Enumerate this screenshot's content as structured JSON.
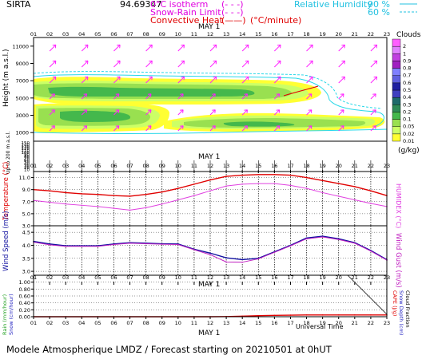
{
  "header": {
    "station": "SIRTA",
    "lon_lat": "94.69347",
    "legend_isotherm": "0°C isotherm",
    "legend_isotherm_style": "(- - -)",
    "legend_snow_rain": "Snow-Rain Limit",
    "legend_snow_rain_style": "(- - -)",
    "legend_convective": "Convective Heat",
    "legend_convective_style": "(——)",
    "legend_convective_unit": "(°C/minute)",
    "legend_rh": "Relative Humidity",
    "rh_90": "90 %",
    "rh_60": "60 %"
  },
  "footer": {
    "text": "Modele Atmospherique LMDZ / Forecast starting on 20210501 at 0hUT"
  },
  "colors": {
    "temperature": "#e00000",
    "humidex": "#e040e0",
    "wind_speed": "#1010a0",
    "wind_gust": "#c020c0",
    "cape": "#e00000",
    "rh_line": "#28d8e8",
    "wind_barb": "#ff20ff",
    "text_magenta": "#e000e0",
    "text_red": "#e00000",
    "text_cyan": "#20c0e0",
    "text_blue": "#2020c0"
  },
  "chart_data": [
    {
      "type": "heatmap",
      "title": "Clouds",
      "ylabel": "Height (m a.s.l.)",
      "ylabel_lower": "Up to 200 m a.s.l.",
      "xlabel": "MAY 1",
      "x_ticks": [
        "01",
        "02",
        "03",
        "04",
        "05",
        "06",
        "07",
        "08",
        "09",
        "10",
        "11",
        "12",
        "13",
        "14",
        "15",
        "16",
        "17",
        "18",
        "19",
        "20",
        "21",
        "22",
        "23"
      ],
      "y_ticks_upper": [
        1000,
        3000,
        5000,
        7000,
        9000,
        11000
      ],
      "y_ticks_lower": [
        10,
        20,
        30,
        40,
        50,
        60,
        70,
        80,
        90,
        100,
        110,
        120,
        130,
        140,
        150
      ],
      "colorbar_title": "Clouds",
      "colorbar_unit": "(g/kg)",
      "colorbar_levels": [
        "0.01",
        "0.02",
        "0.05",
        "0.1",
        "0.2",
        "0.3",
        "0.4",
        "0.5",
        "0.6",
        "0.7",
        "0.8",
        "0.9",
        "1",
        "2"
      ],
      "colorbar_colors": [
        "#ffff33",
        "#ccff66",
        "#99e050",
        "#44b84c",
        "#2e8b57",
        "#1e6b6b",
        "#4040c0",
        "#2020a0",
        "#6060e0",
        "#8080ff",
        "#a020c0",
        "#c040e0",
        "#e080ff",
        "#ff60ff"
      ]
    },
    {
      "type": "line",
      "x_ticks": [
        "01",
        "02",
        "03",
        "04",
        "05",
        "06",
        "07",
        "08",
        "09",
        "10",
        "11",
        "12",
        "13",
        "14",
        "15",
        "16",
        "17",
        "18",
        "19",
        "20",
        "21",
        "22",
        "23"
      ],
      "ylabel": "Temperature (°C)",
      "ylabel_right": "HUMIDEX (°C)",
      "y_ticks": [
        "3.0",
        "5.0",
        "7.0",
        "9.0",
        "11.0"
      ],
      "ylim": [
        3,
        12
      ],
      "series": [
        {
          "name": "Temperature",
          "values": [
            9.0,
            8.8,
            8.5,
            8.3,
            8.2,
            8.0,
            7.9,
            8.2,
            8.6,
            9.2,
            9.9,
            10.6,
            11.2,
            11.4,
            11.5,
            11.5,
            11.4,
            11.0,
            10.5,
            10.0,
            9.5,
            8.8,
            8.0
          ]
        },
        {
          "name": "HUMIDEX",
          "values": [
            7.2,
            6.9,
            6.6,
            6.4,
            6.2,
            5.9,
            5.6,
            6.0,
            6.6,
            7.3,
            8.0,
            8.8,
            9.6,
            9.9,
            10.0,
            10.0,
            9.7,
            9.2,
            8.5,
            7.9,
            7.3,
            6.7,
            6.2
          ]
        }
      ]
    },
    {
      "type": "line",
      "x_ticks": [
        "01",
        "02",
        "03",
        "04",
        "05",
        "06",
        "07",
        "08",
        "09",
        "10",
        "11",
        "12",
        "13",
        "14",
        "15",
        "16",
        "17",
        "18",
        "19",
        "20",
        "21",
        "22",
        "23"
      ],
      "ylabel": "Wind Speed (m/s)",
      "ylabel_right": "Wind Gust (m/s)",
      "y_ticks": [
        "3.0",
        "3.5",
        "4.0",
        "4.5"
      ],
      "ylim": [
        2.85,
        4.75
      ],
      "series": [
        {
          "name": "Wind Speed",
          "values": [
            4.15,
            4.05,
            3.98,
            3.98,
            3.98,
            4.05,
            4.1,
            4.08,
            4.06,
            4.05,
            3.85,
            3.7,
            3.52,
            3.45,
            3.5,
            3.75,
            4.0,
            4.28,
            4.35,
            4.25,
            4.1,
            3.8,
            3.45
          ]
        },
        {
          "name": "Wind Gust",
          "values": [
            4.12,
            4.02,
            3.96,
            3.96,
            3.96,
            4.03,
            4.08,
            4.06,
            4.04,
            4.03,
            3.83,
            3.64,
            3.36,
            3.35,
            3.48,
            3.73,
            3.98,
            4.25,
            4.32,
            4.22,
            4.08,
            3.78,
            3.43
          ]
        }
      ]
    },
    {
      "type": "line",
      "x_ticks": [
        "01",
        "02",
        "03",
        "04",
        "05",
        "06",
        "07",
        "08",
        "09",
        "10",
        "11",
        "12",
        "13",
        "14",
        "15",
        "16",
        "17",
        "18",
        "19",
        "20",
        "21",
        "22",
        "23"
      ],
      "xlabel": "Universal Time",
      "xlabel_secondary": "MAY 1",
      "ylabel": "Rain (mm/hour)",
      "ylabel_b": "Snow (cm/hour)",
      "ylabel_right": "CAPE (J/g)",
      "ylabel_right_b": "Snow Depth (cm)",
      "ylabel_right_c": "Cloud Fraction",
      "y_ticks": [
        "0.00",
        "0.20",
        "0.40",
        "0.60",
        "0.80",
        "1.00"
      ],
      "ylim": [
        0,
        1.2
      ],
      "series": [
        {
          "name": "CAPE",
          "values": [
            0,
            0,
            0,
            0,
            0,
            0,
            0,
            0,
            0,
            0,
            0,
            0,
            0.005,
            0.015,
            0.03,
            0.04,
            0.045,
            0.05,
            0.05,
            0.05,
            0.05,
            0.05,
            0.05
          ]
        }
      ]
    }
  ]
}
